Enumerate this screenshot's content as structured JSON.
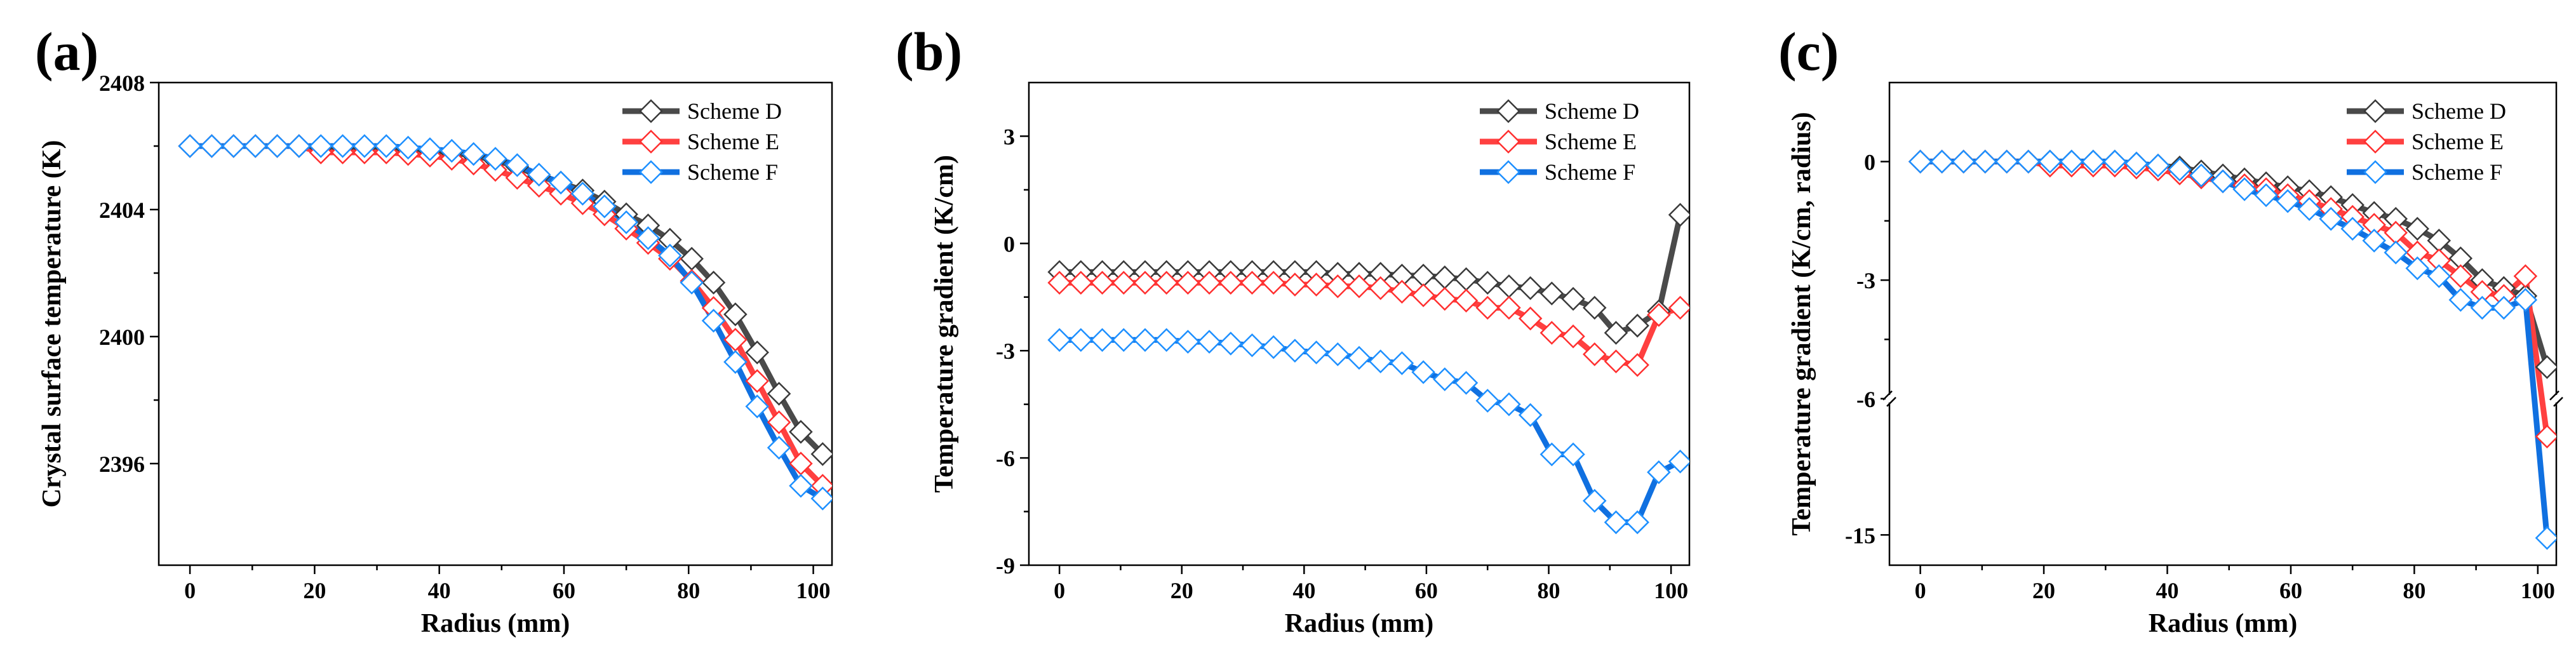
{
  "chart_data": [
    {
      "type": "line",
      "panel_label": "(a)",
      "xlabel": "Radius (mm)",
      "ylabel": "Crystal surface temperature  (K)",
      "xlim": [
        -5,
        103
      ],
      "ylim": [
        2392.8,
        2408
      ],
      "xticks": [
        0,
        20,
        40,
        60,
        80,
        100
      ],
      "xtick_labels": [
        "0",
        "20",
        "40",
        "60",
        "80",
        "100"
      ],
      "yticks": [
        2396,
        2400,
        2404,
        2408
      ],
      "ytick_labels": [
        "2396",
        "2400",
        "2404",
        "2408"
      ],
      "legend_position": "top-right",
      "series": [
        {
          "name": "Scheme D",
          "color": "#4a4a4a",
          "marker_color": "#3a3a3a",
          "x": [
            0,
            3.5,
            7,
            10.5,
            14,
            17.5,
            21,
            24.5,
            28,
            31.5,
            35,
            38.5,
            42,
            45.5,
            49,
            52.5,
            56,
            59.5,
            63,
            66.5,
            70,
            73.5,
            77,
            80.5,
            84,
            87.5,
            91,
            94.5,
            98,
            101.5
          ],
          "y": [
            2406,
            2406,
            2406,
            2406,
            2406,
            2406,
            2405.95,
            2405.95,
            2405.95,
            2405.95,
            2405.9,
            2405.85,
            2405.8,
            2405.7,
            2405.55,
            2405.35,
            2405.05,
            2404.85,
            2404.6,
            2404.25,
            2403.85,
            2403.5,
            2403.05,
            2402.45,
            2401.7,
            2400.7,
            2399.5,
            2398.2,
            2397,
            2396.3
          ]
        },
        {
          "name": "Scheme E",
          "color": "#ff4040",
          "marker_color": "#ff3030",
          "x": [
            0,
            3.5,
            7,
            10.5,
            14,
            17.5,
            21,
            24.5,
            28,
            31.5,
            35,
            38.5,
            42,
            45.5,
            49,
            52.5,
            56,
            59.5,
            63,
            66.5,
            70,
            73.5,
            77,
            80.5,
            84,
            87.5,
            91,
            94.5,
            98,
            101.5
          ],
          "y": [
            2406,
            2406,
            2406,
            2406,
            2406,
            2406,
            2405.8,
            2405.8,
            2405.8,
            2405.8,
            2405.75,
            2405.7,
            2405.6,
            2405.45,
            2405.25,
            2405,
            2404.75,
            2404.5,
            2404.2,
            2403.85,
            2403.4,
            2402.95,
            2402.45,
            2401.75,
            2400.9,
            2399.9,
            2398.6,
            2397.3,
            2396,
            2395.3
          ]
        },
        {
          "name": "Scheme F",
          "color": "#1070e0",
          "marker_color": "#1e90ff",
          "x": [
            0,
            3.5,
            7,
            10.5,
            14,
            17.5,
            21,
            24.5,
            28,
            31.5,
            35,
            38.5,
            42,
            45.5,
            49,
            52.5,
            56,
            59.5,
            63,
            66.5,
            70,
            73.5,
            77,
            80.5,
            84,
            87.5,
            91,
            94.5,
            98,
            101.5
          ],
          "y": [
            2406,
            2406,
            2406,
            2406,
            2406,
            2406,
            2406,
            2406,
            2406,
            2406,
            2405.95,
            2405.9,
            2405.85,
            2405.75,
            2405.6,
            2405.4,
            2405.1,
            2404.85,
            2404.5,
            2404.1,
            2403.6,
            2403.1,
            2402.55,
            2401.7,
            2400.5,
            2399.2,
            2397.8,
            2396.5,
            2395.3,
            2394.9
          ]
        }
      ]
    },
    {
      "type": "line",
      "panel_label": "(b)",
      "xlabel": "Radius (mm)",
      "ylabel": "Temperature gradient (K/cm)",
      "xlim": [
        -5,
        103
      ],
      "ylim": [
        -9,
        4.5
      ],
      "xticks": [
        0,
        20,
        40,
        60,
        80,
        100
      ],
      "xtick_labels": [
        "0",
        "20",
        "40",
        "60",
        "80",
        "100"
      ],
      "yticks": [
        -9,
        -6,
        -3,
        0,
        3
      ],
      "ytick_labels": [
        "-9",
        "-6",
        "-3",
        "0",
        "3"
      ],
      "legend_position": "top-right",
      "series": [
        {
          "name": "Scheme D",
          "color": "#4a4a4a",
          "marker_color": "#3a3a3a",
          "x": [
            0,
            3.5,
            7,
            10.5,
            14,
            17.5,
            21,
            24.5,
            28,
            31.5,
            35,
            38.5,
            42,
            45.5,
            49,
            52.5,
            56,
            59.5,
            63,
            66.5,
            70,
            73.5,
            77,
            80.5,
            84,
            87.5,
            91,
            94.5,
            98,
            101.5
          ],
          "y": [
            -0.8,
            -0.8,
            -0.8,
            -0.8,
            -0.8,
            -0.8,
            -0.8,
            -0.8,
            -0.8,
            -0.8,
            -0.8,
            -0.8,
            -0.8,
            -0.85,
            -0.85,
            -0.85,
            -0.9,
            -0.9,
            -0.95,
            -1.0,
            -1.1,
            -1.2,
            -1.25,
            -1.4,
            -1.55,
            -1.8,
            -2.5,
            -2.3,
            -1.9,
            0.8
          ]
        },
        {
          "name": "Scheme E",
          "color": "#ff4040",
          "marker_color": "#ff3030",
          "x": [
            0,
            3.5,
            7,
            10.5,
            14,
            17.5,
            21,
            24.5,
            28,
            31.5,
            35,
            38.5,
            42,
            45.5,
            49,
            52.5,
            56,
            59.5,
            63,
            66.5,
            70,
            73.5,
            77,
            80.5,
            84,
            87.5,
            91,
            94.5,
            98,
            101.5
          ],
          "y": [
            -1.1,
            -1.1,
            -1.1,
            -1.1,
            -1.1,
            -1.1,
            -1.1,
            -1.1,
            -1.1,
            -1.1,
            -1.1,
            -1.15,
            -1.15,
            -1.2,
            -1.2,
            -1.25,
            -1.35,
            -1.45,
            -1.55,
            -1.6,
            -1.8,
            -1.8,
            -2.1,
            -2.5,
            -2.6,
            -3.1,
            -3.3,
            -3.4,
            -2.0,
            -1.8
          ]
        },
        {
          "name": "Scheme F",
          "color": "#1070e0",
          "marker_color": "#1e90ff",
          "x": [
            0,
            3.5,
            7,
            10.5,
            14,
            17.5,
            21,
            24.5,
            28,
            31.5,
            35,
            38.5,
            42,
            45.5,
            49,
            52.5,
            56,
            59.5,
            63,
            66.5,
            70,
            73.5,
            77,
            80.5,
            84,
            87.5,
            91,
            94.5,
            98,
            101.5
          ],
          "y": [
            -2.7,
            -2.7,
            -2.7,
            -2.7,
            -2.7,
            -2.7,
            -2.75,
            -2.75,
            -2.8,
            -2.85,
            -2.9,
            -3.0,
            -3.05,
            -3.1,
            -3.2,
            -3.3,
            -3.35,
            -3.6,
            -3.8,
            -3.9,
            -4.4,
            -4.5,
            -4.8,
            -5.9,
            -5.9,
            -7.2,
            -7.8,
            -7.8,
            -6.4,
            -6.1
          ]
        }
      ]
    },
    {
      "type": "line",
      "panel_label": "(c)",
      "xlabel": "Radius (mm)",
      "ylabel": "Temperature gradient (K/cm, radius)",
      "xlim": [
        -5,
        103
      ],
      "axis_break": {
        "value": -6,
        "note": "broken y-axis: upper segment 2 to -6, lower segment -6 to -17"
      },
      "ylim": [
        -17,
        2
      ],
      "yticks": [
        0,
        -3,
        -6,
        -15
      ],
      "ytick_labels": [
        "0",
        "-3",
        "-6",
        "-15"
      ],
      "xticks": [
        0,
        20,
        40,
        60,
        80,
        100
      ],
      "xtick_labels": [
        "0",
        "20",
        "40",
        "60",
        "80",
        "100"
      ],
      "legend_position": "top-right",
      "series": [
        {
          "name": "Scheme D",
          "color": "#4a4a4a",
          "marker_color": "#3a3a3a",
          "x": [
            0,
            3.5,
            7,
            10.5,
            14,
            17.5,
            21,
            24.5,
            28,
            31.5,
            35,
            38.5,
            42,
            45.5,
            49,
            52.5,
            56,
            59.5,
            63,
            66.5,
            70,
            73.5,
            77,
            80.5,
            84,
            87.5,
            91,
            94.5,
            98,
            101.5
          ],
          "y": [
            0,
            0,
            0,
            0,
            0,
            0,
            0,
            0,
            0,
            0,
            -0.05,
            -0.1,
            -0.15,
            -0.25,
            -0.35,
            -0.45,
            -0.55,
            -0.65,
            -0.75,
            -0.9,
            -1.1,
            -1.3,
            -1.45,
            -1.7,
            -2.0,
            -2.45,
            -3.0,
            -3.2,
            -3.4,
            -5.2
          ]
        },
        {
          "name": "Scheme E",
          "color": "#ff4040",
          "marker_color": "#ff3030",
          "x": [
            0,
            3.5,
            7,
            10.5,
            14,
            17.5,
            21,
            24.5,
            28,
            31.5,
            35,
            38.5,
            42,
            45.5,
            49,
            52.5,
            56,
            59.5,
            63,
            66.5,
            70,
            73.5,
            77,
            80.5,
            84,
            87.5,
            91,
            94.5,
            98,
            101.5
          ],
          "y": [
            0,
            0,
            0,
            0,
            0,
            0,
            -0.1,
            -0.1,
            -0.1,
            -0.1,
            -0.15,
            -0.2,
            -0.3,
            -0.4,
            -0.5,
            -0.6,
            -0.7,
            -0.85,
            -1.0,
            -1.2,
            -1.4,
            -1.6,
            -1.8,
            -2.3,
            -2.5,
            -2.9,
            -3.3,
            -3.4,
            -2.9,
            -8.5
          ]
        },
        {
          "name": "Scheme F",
          "color": "#1070e0",
          "marker_color": "#1e90ff",
          "x": [
            0,
            3.5,
            7,
            10.5,
            14,
            17.5,
            21,
            24.5,
            28,
            31.5,
            35,
            38.5,
            42,
            45.5,
            49,
            52.5,
            56,
            59.5,
            63,
            66.5,
            70,
            73.5,
            77,
            80.5,
            84,
            87.5,
            91,
            94.5,
            98,
            101.5
          ],
          "y": [
            0,
            0,
            0,
            0,
            0,
            0,
            0,
            0,
            0,
            0,
            -0.05,
            -0.1,
            -0.2,
            -0.35,
            -0.5,
            -0.7,
            -0.85,
            -1.0,
            -1.2,
            -1.45,
            -1.7,
            -2.0,
            -2.3,
            -2.7,
            -2.9,
            -3.5,
            -3.7,
            -3.7,
            -3.5,
            -15.2
          ]
        }
      ]
    }
  ]
}
